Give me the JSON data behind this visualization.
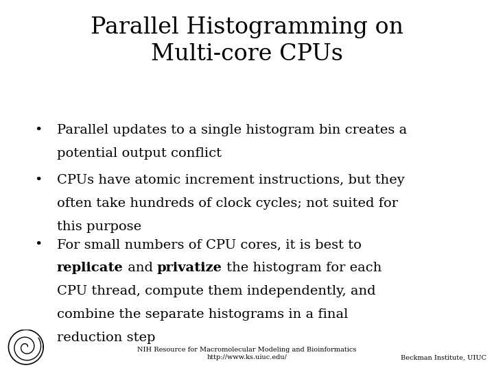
{
  "title_line1": "Parallel Histogramming on",
  "title_line2": "Multi-core CPUs",
  "bullet1_lines": [
    "Parallel updates to a single histogram bin creates a",
    "potential output conflict"
  ],
  "bullet2_lines": [
    "CPUs have atomic increment instructions, but they",
    "often take hundreds of clock cycles; not suited for",
    "this purpose"
  ],
  "bullet3_line1": "For small numbers of CPU cores, it is best to",
  "bullet3_line2_segs": [
    [
      "replicate",
      true
    ],
    [
      " and ",
      false
    ],
    [
      "privatize",
      true
    ],
    [
      " the histogram for each",
      false
    ]
  ],
  "bullet3_line3": "CPU thread, compute them independently, and",
  "bullet3_line4": "combine the separate histograms in a final",
  "bullet3_line5": "reduction step",
  "footer_center_line1": "NIH Resource for Macromolecular Modeling and Bioinformatics",
  "footer_center_line2": "http://www.ks.uiuc.edu/",
  "footer_right": "Beckman Institute, UIUC",
  "background_color": "#ffffff",
  "text_color": "#000000",
  "title_fontsize": 24,
  "bullet_fontsize": 14,
  "footer_fontsize": 7
}
